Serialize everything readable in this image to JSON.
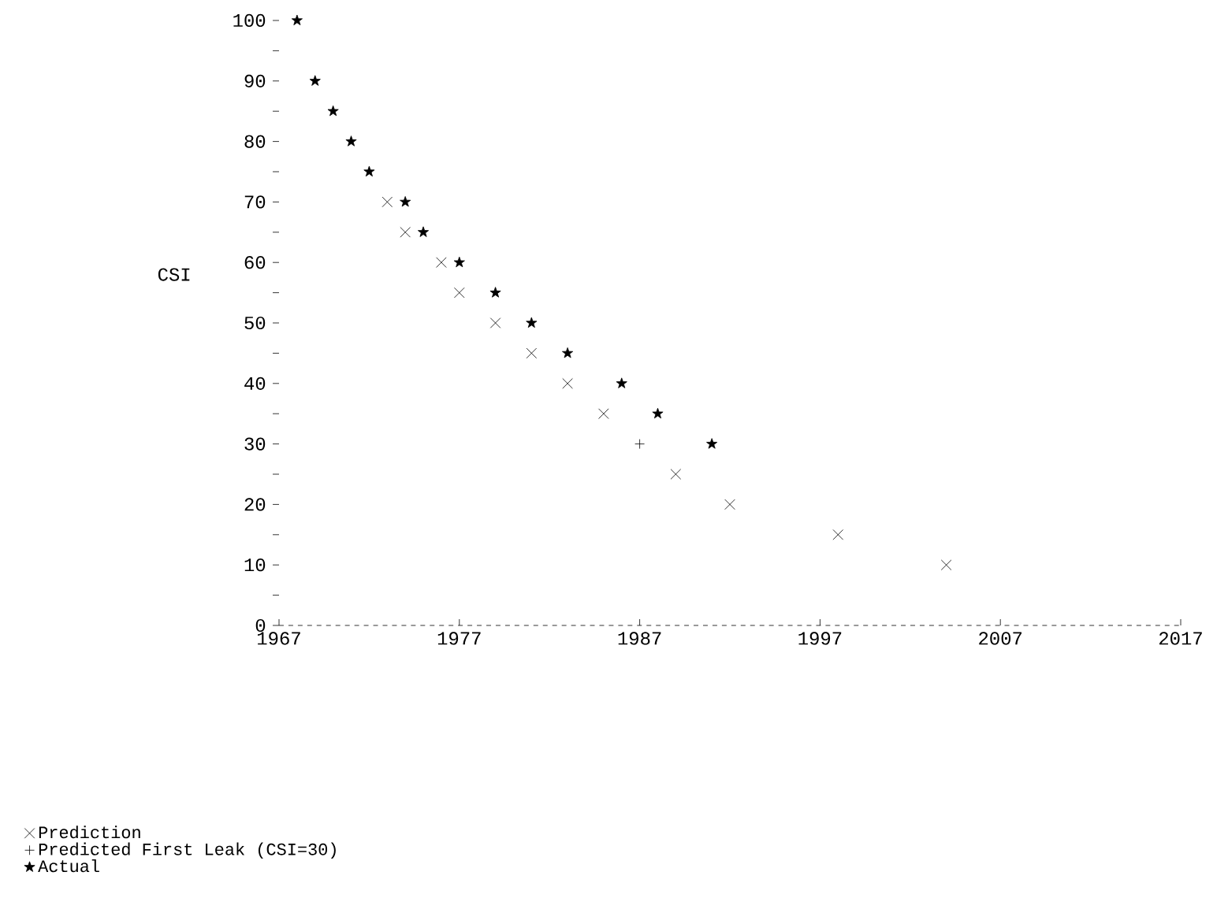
{
  "chart_data": {
    "type": "scatter",
    "ylabel": "CSI",
    "xlim": [
      1967,
      2017
    ],
    "xticks": [
      1967,
      1977,
      1987,
      1997,
      2007,
      2017
    ],
    "ylim": [
      0,
      100
    ],
    "yticks": [
      0,
      {
        "value": 5,
        "label": null
      },
      10,
      {
        "value": 15,
        "label": null
      },
      20,
      {
        "value": 25,
        "label": null
      },
      30,
      {
        "value": 35,
        "label": null
      },
      40,
      {
        "value": 45,
        "label": null
      },
      50,
      {
        "value": 55,
        "label": null
      },
      60,
      {
        "value": 65,
        "label": null
      },
      70,
      {
        "value": 75,
        "label": null
      },
      80,
      {
        "value": 85,
        "label": null
      },
      90,
      {
        "value": 95,
        "label": null
      },
      100
    ],
    "grid": false,
    "legend": "bottom left",
    "series": [
      {
        "name": "Prediction",
        "color": "#000000",
        "marker": "cross",
        "x": [
          1973,
          1974,
          1976,
          1977,
          1979,
          1981,
          1983,
          1985,
          1989,
          1992,
          1998,
          2004
        ],
        "values": [
          70,
          65,
          60,
          55,
          50,
          45,
          40,
          35,
          25,
          20,
          15,
          10
        ]
      },
      {
        "name": "Predicted First Leak (CSI=30)",
        "color": "#000000",
        "marker": "plus",
        "x": [
          1987
        ],
        "values": [
          30
        ]
      },
      {
        "name": "Actual",
        "color": "#000000",
        "marker": "star",
        "x": [
          1968,
          1969,
          1970,
          1971,
          1972,
          1974,
          1975,
          1977,
          1979,
          1981,
          1983,
          1986,
          1988,
          1991
        ],
        "values": [
          100,
          90,
          85,
          80,
          75,
          70,
          65,
          60,
          55,
          50,
          45,
          40,
          35,
          30
        ]
      }
    ]
  }
}
